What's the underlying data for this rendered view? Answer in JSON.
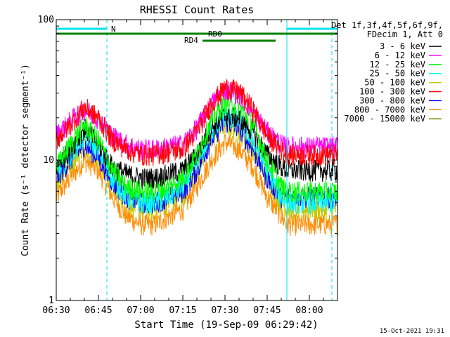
{
  "chart_data": {
    "type": "line",
    "title": "RHESSI Count Rates",
    "xlabel": "Start Time (19-Sep-09 06:29:42)",
    "ylabel": "Count Rate (s⁻¹ detector segment⁻¹)",
    "yscale": "log",
    "ylim": [
      1,
      100
    ],
    "xlim_minutes_after_0630": [
      0,
      100
    ],
    "x_ticks": [
      "06:30",
      "06:45",
      "07:00",
      "07:15",
      "07:30",
      "07:45",
      "08:00"
    ],
    "y_ticks": [
      "1",
      "10",
      "100"
    ],
    "grid": false,
    "legend_position": "right",
    "legend_header": [
      "Det 1f,3f,4f,5f,6f,9f,",
      "FDecim 1, Att 0"
    ],
    "timestamp": "15-Oct-2021 19:31",
    "vertical_markers_minutes": [
      {
        "t": 0,
        "style": "solid",
        "color": "#00e5ee"
      },
      {
        "t": 18,
        "style": "dashed",
        "color": "#00e5ee"
      },
      {
        "t": 82,
        "style": "solid",
        "color": "#00e5ee"
      },
      {
        "t": 98,
        "style": "dashed",
        "color": "#00e5ee"
      }
    ],
    "annotation_bars": [
      {
        "label": "N",
        "color": "#00e5ee",
        "level": 1,
        "segments": [
          [
            0,
            18
          ],
          [
            82,
            100
          ]
        ]
      },
      {
        "label": "RD0",
        "color": "#008000",
        "level": 2,
        "segments": [
          [
            0,
            78
          ],
          [
            78,
            100
          ]
        ]
      },
      {
        "label": "RD4",
        "color": "#008000",
        "level": 3,
        "segments": [
          [
            52,
            78
          ]
        ]
      }
    ],
    "x_minutes": [
      0,
      5,
      10,
      15,
      20,
      25,
      30,
      35,
      40,
      45,
      50,
      55,
      60,
      65,
      70,
      75,
      80,
      82,
      85,
      90,
      95,
      100
    ],
    "series": [
      {
        "name": "3 - 6 keV",
        "color": "#000000",
        "values": [
          9,
          12,
          17,
          13,
          9,
          8,
          7.5,
          7.5,
          8,
          8.5,
          11,
          17,
          21,
          20,
          16,
          11,
          9,
          8.5,
          8.5,
          8.5,
          8.5,
          8.5
        ]
      },
      {
        "name": "6 - 12 keV",
        "color": "#ff00ff",
        "values": [
          15,
          19,
          23,
          20,
          15,
          13,
          12,
          12,
          12.5,
          13,
          17,
          25,
          32,
          30,
          22,
          16,
          13,
          12.5,
          12.5,
          12.5,
          12.5,
          12.5
        ]
      },
      {
        "name": "12 - 25 keV",
        "color": "#00ff00",
        "values": [
          9,
          13,
          18,
          14,
          8.5,
          6.5,
          6,
          6,
          6.5,
          7.5,
          11,
          19,
          26,
          24,
          18,
          10,
          6.5,
          6,
          6,
          6,
          6,
          6
        ]
      },
      {
        "name": "25 - 50 keV",
        "color": "#00ffff",
        "values": [
          8,
          11,
          15,
          12,
          7.5,
          5.5,
          5,
          5,
          5.5,
          6.5,
          9.5,
          16,
          21,
          19,
          14,
          8.5,
          5.5,
          5,
          5,
          5,
          5,
          5
        ]
      },
      {
        "name": "50 - 100 keV",
        "color": "#c8c800",
        "values": [
          7,
          9.5,
          13,
          10.5,
          6.5,
          5,
          4.5,
          4.5,
          5,
          5.5,
          8.5,
          14,
          18,
          16,
          12,
          7.5,
          5,
          4.5,
          4.5,
          4.5,
          4.5,
          4.5
        ]
      },
      {
        "name": "100 - 300 keV",
        "color": "#ff0000",
        "values": [
          14,
          18,
          24,
          20,
          14,
          12,
          11,
          11,
          11.5,
          12,
          16,
          25,
          33,
          31,
          23,
          15,
          12,
          11,
          11,
          11,
          11,
          11
        ]
      },
      {
        "name": "300 - 800 keV",
        "color": "#0000ff",
        "values": [
          7.5,
          10,
          13,
          10.5,
          7,
          5.5,
          5,
          5,
          5.5,
          6,
          8.5,
          14,
          19,
          17,
          12,
          7.5,
          5.5,
          5.5,
          5.5,
          5.5,
          5.5,
          5.5
        ]
      },
      {
        "name": "800 - 7000 keV",
        "color": "#ff8c00",
        "values": [
          5.5,
          7.5,
          10,
          8.5,
          5.5,
          4,
          3.5,
          3.5,
          4,
          4.5,
          6.5,
          10,
          13.5,
          12,
          9,
          5.5,
          4,
          3.5,
          3.5,
          3.5,
          3.5,
          3.5
        ]
      },
      {
        "name": "7000 - 15000 keV",
        "color": "#808000",
        "values": [
          6,
          8.5,
          11,
          9,
          6,
          4.5,
          4,
          4,
          4.5,
          5,
          7,
          11,
          14.5,
          13,
          9.5,
          6,
          4.5,
          4,
          4,
          4,
          4,
          4
        ]
      }
    ]
  }
}
